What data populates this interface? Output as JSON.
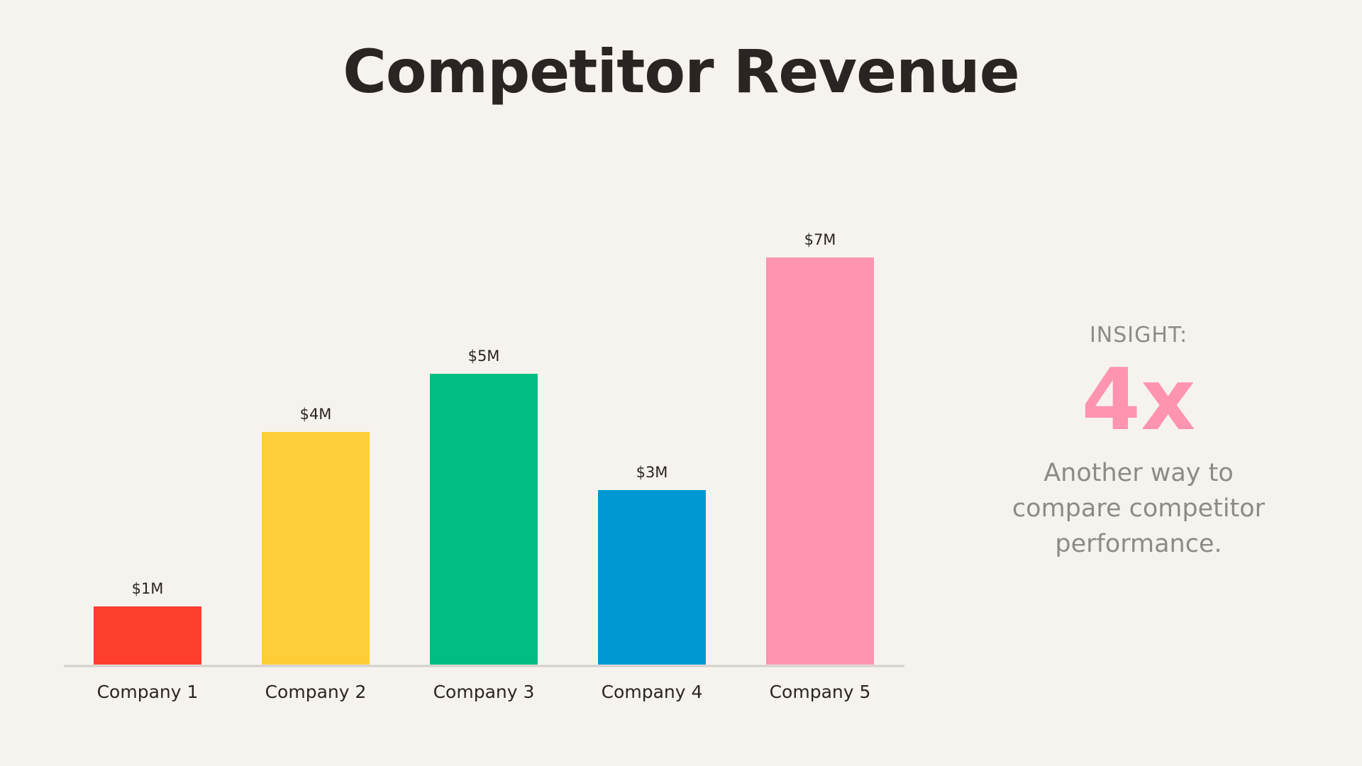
{
  "slide": {
    "title": "Competitor Revenue"
  },
  "chart_data": {
    "type": "bar",
    "title": "Competitor Revenue",
    "xlabel": "",
    "ylabel": "",
    "ylim": [
      0,
      7
    ],
    "grid": false,
    "categories": [
      "Company 1",
      "Company 2",
      "Company 3",
      "Company 4",
      "Company 5"
    ],
    "values": [
      1,
      4,
      5,
      3,
      7
    ],
    "data_labels": [
      "$1M",
      "$4M",
      "$5M",
      "$3M",
      "$7M"
    ],
    "colors": [
      "#ff3f2e",
      "#ffcd38",
      "#00bd84",
      "#0098d2",
      "#ff94b1"
    ]
  },
  "insight": {
    "label": "INSIGHT:",
    "value": "4x",
    "text_lines": [
      "Another way to",
      "compare competitor",
      "performance."
    ]
  },
  "colors": {
    "background": "#f6f3ef",
    "title": "#2a2522",
    "muted_text": "#8d8a87",
    "axis": "#d4d0cc",
    "accent": "#ff94b1"
  }
}
